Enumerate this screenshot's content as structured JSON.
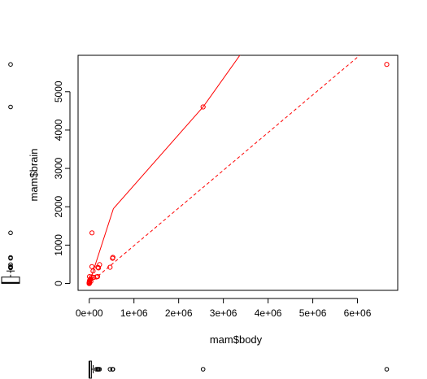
{
  "chart_data": {
    "type": "scatter",
    "xlabel": "mam$body",
    "ylabel": "mam$brain",
    "xlim": [
      -250000,
      6900000
    ],
    "ylim": [
      -180,
      5950
    ],
    "xticks": [
      {
        "value": 0,
        "label": "0e+00"
      },
      {
        "value": 1000000,
        "label": "1e+06"
      },
      {
        "value": 2000000,
        "label": "2e+06"
      },
      {
        "value": 3000000,
        "label": "3e+06"
      },
      {
        "value": 4000000,
        "label": "4e+06"
      },
      {
        "value": 5000000,
        "label": "5e+06"
      },
      {
        "value": 6000000,
        "label": "6e+06"
      }
    ],
    "yticks": [
      {
        "value": 0,
        "label": "0"
      },
      {
        "value": 1000,
        "label": "1000"
      },
      {
        "value": 2000,
        "label": "2000"
      },
      {
        "value": 3000,
        "label": "3000"
      },
      {
        "value": 4000,
        "label": "4000"
      },
      {
        "value": 5000,
        "label": "5000"
      }
    ],
    "points": [
      {
        "x": 6654000,
        "y": 5712
      },
      {
        "x": 2547000,
        "y": 4603
      },
      {
        "x": 62000,
        "y": 1320
      },
      {
        "x": 521000,
        "y": 655
      },
      {
        "x": 529000,
        "y": 680
      },
      {
        "x": 60000,
        "y": 440
      },
      {
        "x": 192000,
        "y": 420
      },
      {
        "x": 465000,
        "y": 423
      },
      {
        "x": 207000,
        "y": 406
      },
      {
        "x": 230000,
        "y": 490
      },
      {
        "x": 160000,
        "y": 169
      },
      {
        "x": 187000,
        "y": 180
      },
      {
        "x": 100000,
        "y": 157
      },
      {
        "x": 36000,
        "y": 119
      },
      {
        "x": 27700,
        "y": 115
      },
      {
        "x": 55500,
        "y": 175
      },
      {
        "x": 10000,
        "y": 81
      },
      {
        "x": 85000,
        "y": 325
      },
      {
        "x": 35000,
        "y": 56
      },
      {
        "x": 14800,
        "y": 98
      },
      {
        "x": 4190,
        "y": 58
      },
      {
        "x": 6800,
        "y": 179
      },
      {
        "x": 3300,
        "y": 25
      },
      {
        "x": 1410,
        "y": 12
      },
      {
        "x": 3385,
        "y": 44
      },
      {
        "x": 480,
        "y": 15
      },
      {
        "x": 1620,
        "y": 11
      },
      {
        "x": 920,
        "y": 5
      },
      {
        "x": 2500,
        "y": 12
      },
      {
        "x": 1040,
        "y": 5
      },
      {
        "x": 250,
        "y": 1
      },
      {
        "x": 100,
        "y": 0
      },
      {
        "x": 10,
        "y": 0
      },
      {
        "x": 3500,
        "y": 3
      },
      {
        "x": 750,
        "y": 12
      },
      {
        "x": 120,
        "y": 1
      }
    ],
    "solid_line": [
      {
        "x": 0,
        "y": 0
      },
      {
        "x": 540000,
        "y": 1950
      },
      {
        "x": 2547000,
        "y": 4603
      },
      {
        "x": 3400000,
        "y": 6000
      }
    ],
    "dashed_line": [
      {
        "x": 0,
        "y": 0
      },
      {
        "x": 6050000,
        "y": 5950
      }
    ],
    "marginal_x_box": {
      "min": 0,
      "q1": 600,
      "median": 3340,
      "q3": 48200,
      "whisker_high": 87000,
      "outliers": [
        160000,
        187000,
        192000,
        207000,
        230000,
        465000,
        521000,
        529000,
        2547000,
        6654000
      ]
    },
    "marginal_y_box": {
      "min": 0,
      "q1": 4,
      "median": 17,
      "q3": 166,
      "whisker_high": 325,
      "outliers": [
        406,
        420,
        423,
        440,
        490,
        655,
        680,
        1320,
        4603,
        5712
      ]
    },
    "colors": {
      "points": "#ff0000",
      "lines": "#ff0000",
      "axes": "#000000"
    }
  }
}
